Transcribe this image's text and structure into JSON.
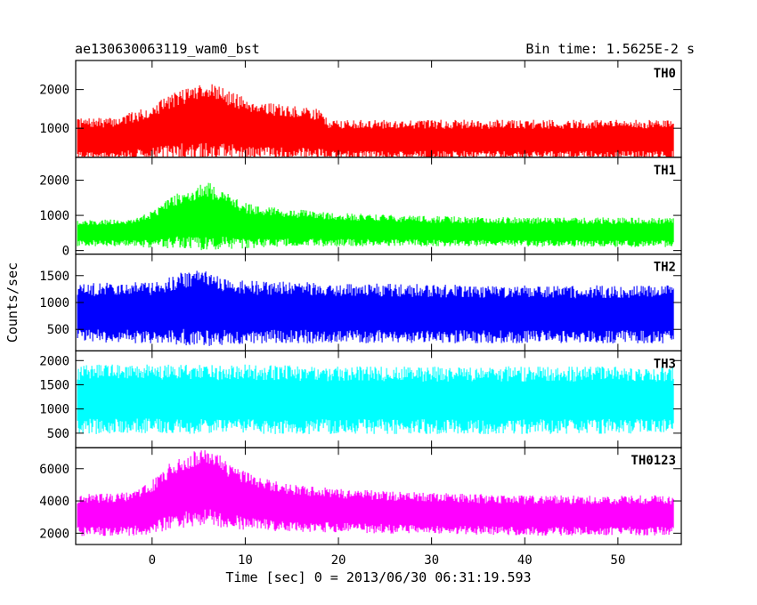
{
  "header": {
    "title_left": "ae130630063119_wam0_bst",
    "title_right": "Bin time: 1.5625E-2 s"
  },
  "chart_data": {
    "type": "line",
    "xlabel": "Time [sec] 0 = 2013/06/30 06:31:19.593",
    "ylabel": "Counts/sec",
    "xlim": [
      -8.2,
      56.8
    ],
    "x_ticks": [
      0,
      10,
      20,
      30,
      40,
      50
    ],
    "x_range": [
      -8,
      56
    ],
    "bin_time": 0.015625,
    "panels": [
      {
        "name": "TH0",
        "color": "#ff0000",
        "ylim": [
          250,
          2750
        ],
        "y_ticks": [
          1000,
          2000
        ],
        "x": [
          -8,
          -4,
          0,
          2,
          4,
          6,
          8,
          10,
          14,
          18,
          19,
          24,
          30,
          40,
          50,
          56
        ],
        "baseline": [
          700,
          720,
          880,
          1050,
          1150,
          1200,
          1100,
          1000,
          900,
          850,
          700,
          700,
          700,
          700,
          700,
          700
        ],
        "spread": [
          550,
          560,
          700,
          850,
          950,
          1050,
          900,
          800,
          700,
          650,
          520,
          520,
          520,
          520,
          520,
          520
        ]
      },
      {
        "name": "TH1",
        "color": "#00ff00",
        "ylim": [
          -100,
          2650
        ],
        "y_ticks": [
          0,
          1000,
          2000
        ],
        "x": [
          -8,
          -2,
          0,
          2,
          4,
          6,
          8,
          10,
          14,
          20,
          30,
          40,
          50,
          56
        ],
        "baseline": [
          500,
          520,
          600,
          800,
          900,
          950,
          850,
          700,
          650,
          600,
          550,
          530,
          520,
          520
        ],
        "spread": [
          380,
          400,
          550,
          750,
          850,
          1000,
          800,
          650,
          550,
          480,
          430,
          420,
          420,
          420
        ]
      },
      {
        "name": "TH2",
        "color": "#0000ff",
        "ylim": [
          100,
          1900
        ],
        "y_ticks": [
          500,
          1000,
          1500
        ],
        "x": [
          -8,
          0,
          4,
          6,
          8,
          20,
          40,
          56
        ],
        "baseline": [
          800,
          820,
          900,
          880,
          820,
          800,
          780,
          780
        ],
        "spread": [
          550,
          580,
          700,
          700,
          600,
          560,
          540,
          540
        ]
      },
      {
        "name": "TH3",
        "color": "#00ffff",
        "ylim": [
          200,
          2200
        ],
        "y_ticks": [
          500,
          1000,
          1500,
          2000
        ],
        "x": [
          -8,
          0,
          10,
          20,
          40,
          56
        ],
        "baseline": [
          1200,
          1200,
          1200,
          1180,
          1180,
          1180
        ],
        "spread": [
          720,
          720,
          720,
          700,
          700,
          700
        ]
      },
      {
        "name": "TH0123",
        "color": "#ff00ff",
        "ylim": [
          1300,
          7300
        ],
        "y_ticks": [
          2000,
          4000,
          6000
        ],
        "x": [
          -8,
          -2,
          0,
          2,
          4,
          6,
          8,
          10,
          14,
          20,
          30,
          40,
          50,
          56
        ],
        "baseline": [
          3100,
          3200,
          3600,
          4300,
          4700,
          4900,
          4400,
          4000,
          3600,
          3400,
          3200,
          3100,
          3100,
          3100
        ],
        "spread": [
          1300,
          1350,
          1700,
          2100,
          2300,
          2500,
          2100,
          1800,
          1500,
          1350,
          1300,
          1250,
          1250,
          1250
        ]
      }
    ]
  }
}
